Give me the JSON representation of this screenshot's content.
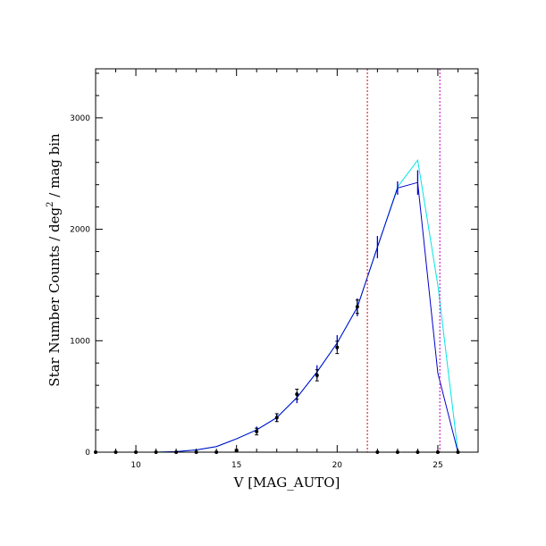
{
  "chart_data": {
    "type": "line",
    "xlabel": "V [MAG_AUTO]",
    "ylabel_main": "Star Number Counts / deg",
    "ylabel_sup": "2",
    "ylabel_tail": " / mag bin",
    "xlim": [
      8,
      27
    ],
    "ylim": [
      0,
      3440
    ],
    "x_ticks": [
      10,
      15,
      20,
      25
    ],
    "y_ticks": [
      0,
      1000,
      2000,
      3000
    ],
    "x_minor_step": 1,
    "y_minor_step": 200,
    "grid": false,
    "colors": {
      "blue_model": "#0000cc",
      "cyan_model": "#00e5e5",
      "observed": "#000000",
      "limit_red": "#dd0000",
      "limit_magenta": "#bb00bb"
    },
    "series": [
      {
        "color_key": "cyan_model",
        "x": [
          8,
          9,
          10,
          11,
          12,
          13,
          14,
          15,
          16,
          17,
          18,
          19,
          20,
          21,
          22,
          23,
          24,
          25,
          26
        ],
        "y": [
          0,
          0,
          0,
          0,
          5,
          20,
          50,
          120,
          200,
          310,
          490,
          720,
          980,
          1300,
          1840,
          2380,
          2620,
          1500,
          0
        ]
      },
      {
        "color_key": "blue_model",
        "x": [
          8,
          9,
          10,
          11,
          12,
          13,
          14,
          15,
          16,
          17,
          18,
          19,
          20,
          21,
          22,
          23,
          24,
          25,
          26
        ],
        "y": [
          0,
          0,
          0,
          0,
          5,
          20,
          50,
          120,
          200,
          310,
          490,
          720,
          980,
          1300,
          1840,
          2370,
          2420,
          710,
          0
        ],
        "err": [
          0,
          0,
          0,
          0,
          0,
          0,
          0,
          0,
          30,
          40,
          50,
          60,
          70,
          80,
          100,
          60,
          110,
          0,
          0
        ]
      },
      {
        "color_key": "observed",
        "x": [
          8,
          9,
          10,
          11,
          12,
          13,
          14,
          15,
          16,
          17,
          18,
          19,
          20,
          21,
          22,
          23,
          24,
          25,
          26
        ],
        "y": [
          0,
          0,
          0,
          0,
          0,
          0,
          0,
          15,
          185,
          310,
          520,
          690,
          940,
          1305,
          0,
          0,
          0,
          0,
          0
        ],
        "err": [
          0,
          0,
          0,
          0,
          0,
          0,
          0,
          10,
          30,
          35,
          45,
          50,
          55,
          60,
          0,
          0,
          0,
          0,
          0
        ]
      }
    ],
    "vertical_lines": [
      {
        "x": 21.5,
        "color_key": "limit_red"
      },
      {
        "x": 25.1,
        "color_key": "limit_magenta"
      }
    ]
  }
}
